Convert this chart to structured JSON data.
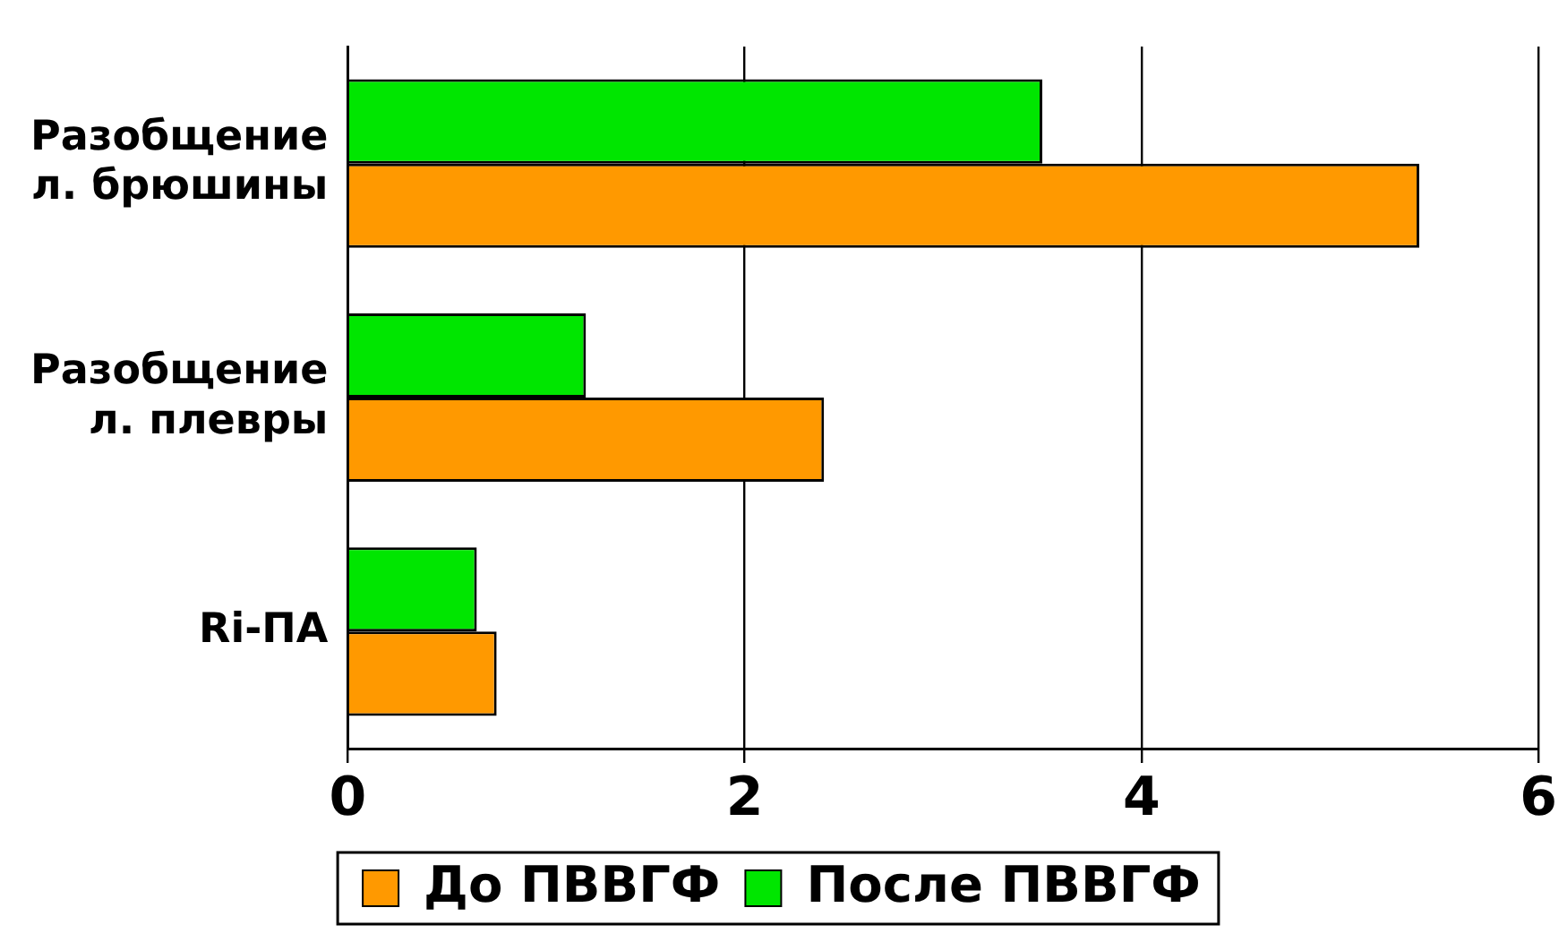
{
  "chart_data": {
    "type": "bar",
    "orientation": "horizontal",
    "categories": [
      "Разобщение л. брюшины",
      "Разобщение л. плевры",
      "Ri-ПА"
    ],
    "series": [
      {
        "name": "До ПВВГФ",
        "color": "#ff9900",
        "values": [
          5.4,
          2.4,
          0.75
        ]
      },
      {
        "name": "После ПВВГФ",
        "color": "#00e600",
        "values": [
          3.5,
          1.2,
          0.65
        ]
      }
    ],
    "xlim": [
      0,
      6
    ],
    "xticks": [
      0,
      2,
      4,
      6
    ],
    "grid": "x",
    "legend": "bottom"
  }
}
